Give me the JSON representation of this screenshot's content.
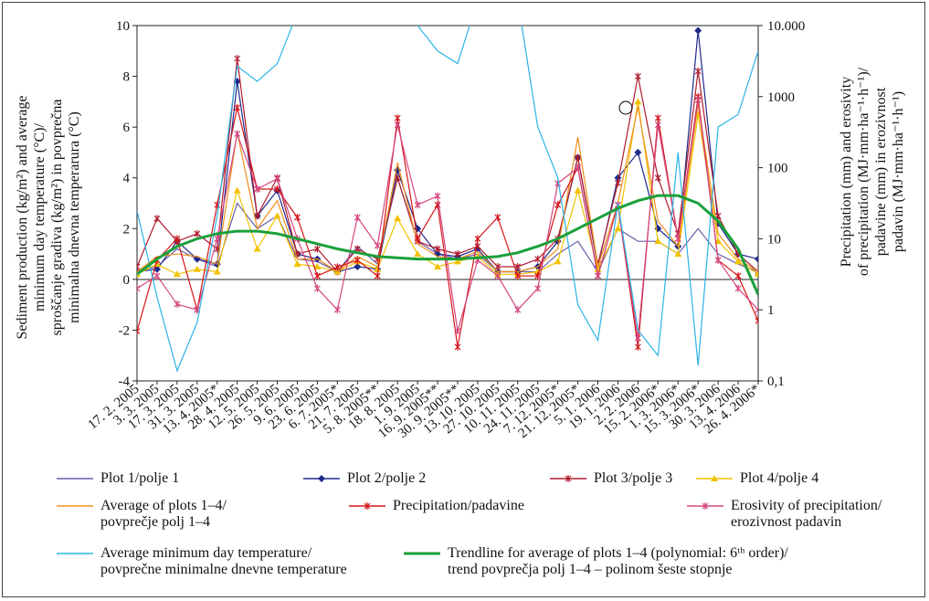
{
  "chart_data": {
    "type": "line",
    "y_label": "Sediment production (kg/m²) and average\nminimum day temperature (°C)/\nsproščanje gradiva (kg/m²) in povprečna\nminimalna dnevna temperarura (°C)",
    "y2_label": "Precipitation (mm) and erosivity\nof precipitation (MJ·mm·ha⁻¹·h⁻¹)/\npadavine (mm) in erozivnost\npadavin (MJ·mm·ha⁻¹·h⁻¹)",
    "categories": [
      "17. 2. 2005",
      "3. 3. 2005",
      "17. 3. 2005",
      "31. 3. 2005",
      "13. 4. 2005*",
      "28. 4. 2005",
      "12. 5. 2005",
      "26. 5. 2005",
      "9. 6. 2005",
      "23. 6. 2005",
      "6. 7. 2005*",
      "21. 7. 2005",
      "5. 8. 2005**",
      "18. 8. 2005",
      "1. 9. 2005",
      "16. 9. 2005**",
      "30. 9. 2005**",
      "13. 10. 2005",
      "27. 10. 2005",
      "10. 11. 2005",
      "24. 11. 2005",
      "7. 12. 2005*",
      "21. 12. 2005*",
      "5. 1. 2006",
      "19. 1. 2006",
      "2. 2. 2006",
      "15. 2. 2006*",
      "1. 3. 2006*",
      "15. 3. 2006*",
      "30. 3. 2006",
      "13. 4. 2006",
      "26. 4. 2006*"
    ],
    "ylim": [
      -4,
      10
    ],
    "yticks": [
      -4,
      -2,
      0,
      2,
      4,
      6,
      8,
      10
    ],
    "y2lim": [
      0.1,
      10000
    ],
    "y2_log": true,
    "y2ticks": [
      {
        "value": 0.1,
        "label": "0,1"
      },
      1,
      10,
      100,
      1000,
      {
        "value": 10000,
        "label": "10.000"
      }
    ],
    "series": [
      {
        "name": "Plot 1/polje 1",
        "color": "#6b5fa8",
        "marker": "none",
        "values": [
          0.3,
          0.5,
          1.2,
          0.8,
          0.5,
          3.0,
          2.0,
          2.5,
          0.8,
          0.7,
          0.3,
          1.3,
          0.6,
          4.0,
          1.5,
          1.0,
          0.8,
          1.0,
          0.3,
          0.3,
          0.3,
          1.0,
          1.5,
          0.3,
          2.0,
          1.5,
          1.5,
          1.0,
          2.0,
          1.0,
          0.6,
          0.3
        ]
      },
      {
        "name": "Plot 2/polje 2",
        "color": "#1f2a8a",
        "marker": "diamond",
        "values": [
          0.3,
          0.4,
          1.5,
          0.8,
          0.6,
          7.8,
          2.5,
          3.5,
          1.0,
          0.8,
          0.3,
          0.5,
          0.4,
          4.3,
          2.0,
          1.0,
          0.9,
          1.2,
          0.3,
          0.3,
          0.5,
          1.5,
          4.8,
          0.5,
          4.0,
          5.0,
          2.0,
          1.3,
          9.8,
          2.2,
          1.0,
          0.8
        ]
      },
      {
        "name": "Plot 3/polje 3",
        "color": "#b01c2e",
        "marker": "star",
        "values": [
          0.5,
          2.4,
          1.5,
          1.8,
          1.2,
          8.7,
          2.5,
          4.0,
          1.0,
          1.2,
          0.3,
          1.2,
          0.8,
          4.0,
          1.5,
          1.2,
          1.0,
          1.3,
          0.5,
          0.5,
          0.8,
          1.6,
          4.8,
          0.6,
          3.8,
          8.0,
          4.0,
          1.8,
          8.2,
          2.5,
          1.0,
          0.3
        ]
      },
      {
        "name": "Plot 4/polje 4",
        "color": "#f2c200",
        "marker": "triangle",
        "values": [
          0.2,
          0.6,
          0.2,
          0.4,
          0.3,
          3.5,
          1.2,
          2.5,
          0.6,
          0.5,
          0.3,
          0.7,
          0.4,
          2.4,
          1.0,
          0.5,
          0.7,
          0.9,
          0.2,
          0.2,
          0.3,
          0.7,
          3.5,
          0.4,
          2.0,
          7.0,
          1.5,
          1.0,
          6.5,
          1.5,
          0.7,
          0.2
        ]
      },
      {
        "name": "Average of plots 1–4/\npovprečje polj 1–4",
        "color": "#f0901e",
        "marker": "none",
        "values": [
          0.3,
          0.9,
          1.0,
          0.9,
          0.6,
          5.8,
          2.0,
          3.1,
          0.8,
          0.8,
          0.3,
          0.9,
          0.5,
          4.6,
          1.4,
          0.9,
          0.8,
          1.1,
          0.3,
          0.3,
          0.5,
          1.2,
          5.6,
          0.5,
          3.0,
          6.8,
          2.3,
          1.3,
          6.9,
          1.8,
          0.8,
          0.3
        ]
      },
      {
        "name": "Precipitation/padavine",
        "color": "#d4151b",
        "marker": "star",
        "axis": "y2",
        "values": [
          0.5,
          5,
          10,
          1,
          30,
          700,
          50,
          50,
          20,
          3,
          4,
          5,
          3,
          500,
          10,
          30,
          0.3,
          10,
          20,
          3,
          3,
          30,
          100,
          3,
          30,
          0.3,
          500,
          10,
          1000,
          5,
          3,
          0.7
        ]
      },
      {
        "name": "Erosivity of precipitation/\nerozivnost padavin",
        "color": "#d4477f",
        "marker": "star",
        "axis": "y2",
        "values": [
          2,
          3,
          1.2,
          1,
          10,
          300,
          50,
          70,
          10,
          2,
          1,
          20,
          8,
          400,
          30,
          40,
          0.5,
          5,
          3,
          1,
          2,
          60,
          100,
          3,
          30,
          0.4,
          400,
          10,
          900,
          5,
          2,
          1
        ]
      },
      {
        "name": "Average minimum day temperature/\npovprečne minimalne dnevne temperature",
        "color": "#2bb3e6",
        "marker": "none",
        "values": [
          2.7,
          -0.7,
          -3.6,
          -1.7,
          2.5,
          8.4,
          7.8,
          8.5,
          10.5,
          12,
          14,
          13,
          11,
          12,
          10,
          9,
          8.5,
          11,
          13,
          11,
          6,
          4,
          -1,
          -2.4,
          3,
          -2,
          -3,
          5,
          -3.4,
          6,
          6.5,
          9
        ]
      },
      {
        "name": "Trendline for average of plots 1–4 (polynomial: 6ᵗʰ order)/\ntrend povprečja polj 1–4 – polinom šeste stopnje",
        "color": "#1aa03a",
        "marker": "none",
        "width": 3,
        "values": [
          0.2,
          0.8,
          1.3,
          1.6,
          1.8,
          1.9,
          1.9,
          1.8,
          1.6,
          1.4,
          1.2,
          1.05,
          0.9,
          0.85,
          0.8,
          0.8,
          0.8,
          0.85,
          0.9,
          1.05,
          1.3,
          1.6,
          2.0,
          2.4,
          2.8,
          3.1,
          3.3,
          3.3,
          3.0,
          2.3,
          1.2,
          -0.6
        ]
      }
    ]
  }
}
